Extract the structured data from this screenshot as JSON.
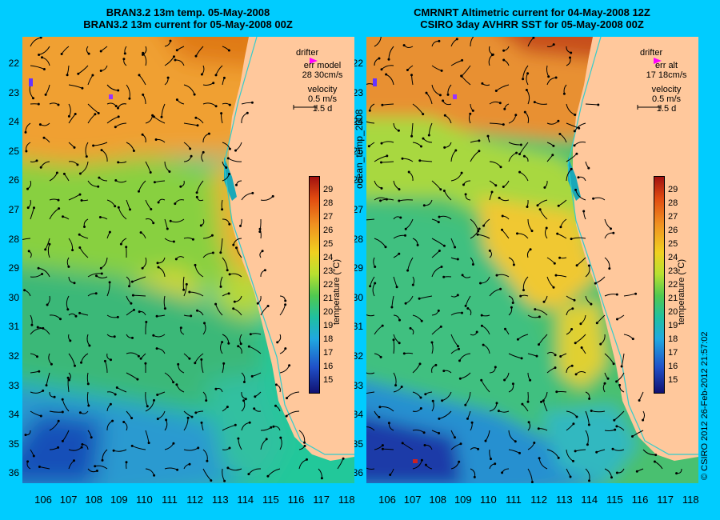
{
  "left_panel": {
    "title_line1": "BRAN3.2 13m temp. 05-May-2008",
    "title_line2": "BRAN3.2 13m current for 05-May-2008 00Z",
    "legend_drifter": "drifter",
    "legend_err": "err model",
    "legend_err_value": "28 30cm/s",
    "legend_velocity": "velocity",
    "legend_velocity_scale": "0.5 m/s",
    "legend_days": "1.5 d"
  },
  "right_panel": {
    "title_line1": "CMRNRT Altimetric current for 04-May-2008 12Z",
    "title_line2": "CSIRO 3day AVHRR SST for 05-May-2008 00Z",
    "legend_drifter": "drifter",
    "legend_err": "err alt",
    "legend_err_value": "17 18cm/s",
    "legend_velocity": "velocity",
    "legend_velocity_scale": "0.5 m/s",
    "legend_days": "1.5 d"
  },
  "side_label": "ocean_temp_2008",
  "credit": "© CSIRO 2012   26-Feb-2012 21:57:02",
  "colorbar": {
    "label": "temperature (°C)",
    "ticks": [
      "29",
      "28",
      "27",
      "26",
      "25",
      "24",
      "23",
      "22",
      "21",
      "20",
      "19",
      "18",
      "17",
      "16",
      "15"
    ],
    "range": [
      14,
      30
    ]
  },
  "latitude_ticks": [
    "22",
    "23",
    "24",
    "25",
    "26",
    "27",
    "28",
    "29",
    "30",
    "31",
    "32",
    "33",
    "34",
    "35",
    "36"
  ],
  "longitude_ticks": [
    "106",
    "107",
    "108",
    "109",
    "110",
    "111",
    "112",
    "113",
    "114",
    "115",
    "116",
    "117",
    "118"
  ],
  "colors": {
    "background": "#00ccff",
    "land": "#ffc89c",
    "coastline_isobath": "#33cccc",
    "drifter_marker": "#ff00ff"
  }
}
